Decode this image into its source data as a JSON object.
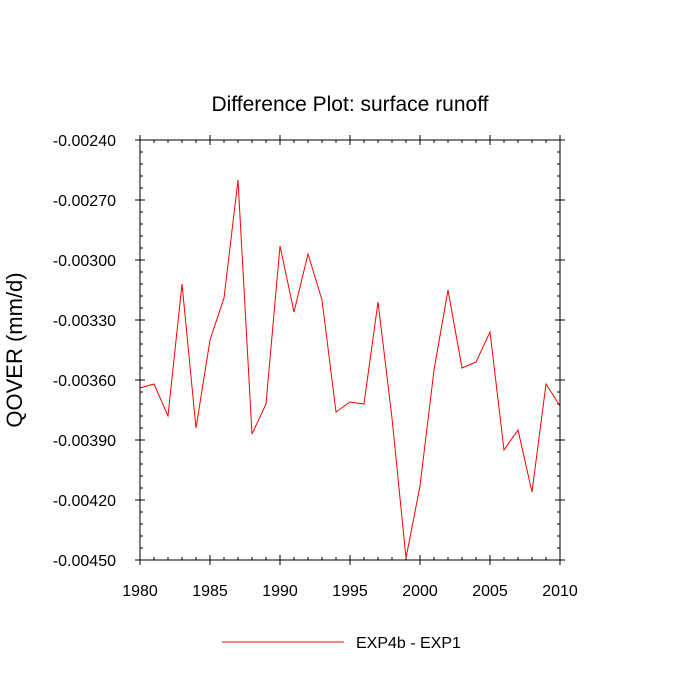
{
  "chart_data": {
    "type": "line",
    "title": "Difference Plot: surface runoff",
    "xlabel": "",
    "ylabel": "QOVER  (mm/d)",
    "xlim": [
      1980,
      2010
    ],
    "ylim": [
      -0.0045,
      -0.0024
    ],
    "x_ticks": [
      "1980",
      "1985",
      "1990",
      "1995",
      "2000",
      "2005",
      "2010"
    ],
    "y_ticks": [
      "-0.00240",
      "-0.00270",
      "-0.00300",
      "-0.00330",
      "-0.00360",
      "-0.00390",
      "-0.00420",
      "-0.00450"
    ],
    "grid": false,
    "legend_position": "bottom",
    "series": [
      {
        "name": "EXP4b - EXP1",
        "color": "#ff0000",
        "x": [
          1980,
          1981,
          1982,
          1983,
          1984,
          1985,
          1986,
          1987,
          1988,
          1989,
          1990,
          1991,
          1992,
          1993,
          1994,
          1995,
          1996,
          1997,
          1998,
          1999,
          2000,
          2001,
          2002,
          2003,
          2004,
          2005,
          2006,
          2007,
          2008,
          2009,
          2010
        ],
        "values": [
          -0.00364,
          -0.00362,
          -0.00378,
          -0.00312,
          -0.00384,
          -0.0034,
          -0.00319,
          -0.0026,
          -0.00387,
          -0.00372,
          -0.00293,
          -0.00326,
          -0.00297,
          -0.0032,
          -0.00376,
          -0.00371,
          -0.00372,
          -0.00321,
          -0.00379,
          -0.00449,
          -0.00413,
          -0.00355,
          -0.00315,
          -0.00354,
          -0.00351,
          -0.00336,
          -0.00395,
          -0.00385,
          -0.00416,
          -0.00362,
          -0.00373
        ]
      }
    ]
  }
}
